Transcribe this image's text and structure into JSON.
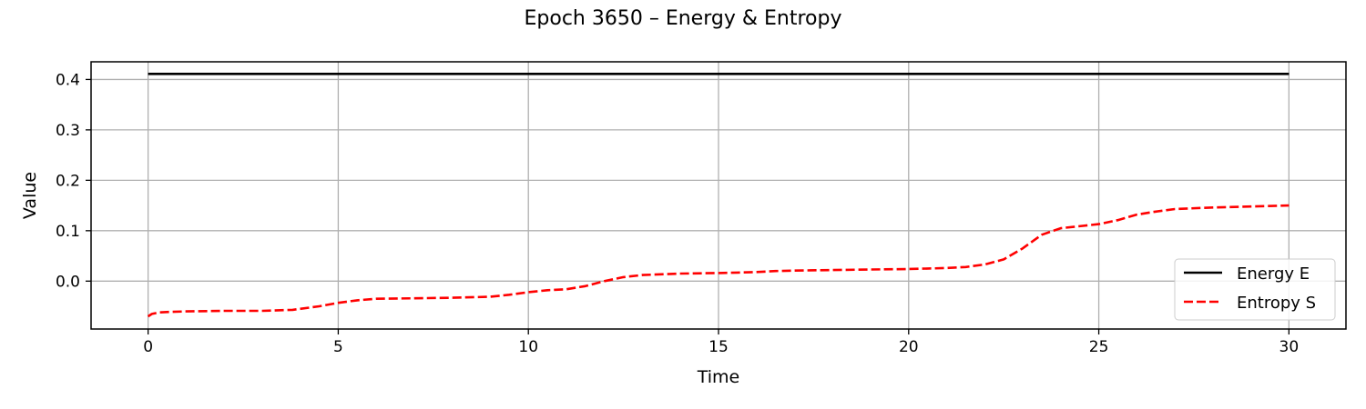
{
  "chart_data": {
    "type": "line",
    "title": "Epoch 3650 – Energy & Entropy",
    "xlabel": "Time",
    "ylabel": "Value",
    "xlim": [
      -1.5,
      31.5
    ],
    "ylim": [
      -0.095,
      0.435
    ],
    "xticks": [
      0,
      5,
      10,
      15,
      20,
      25,
      30
    ],
    "xtick_labels": [
      "0",
      "5",
      "10",
      "15",
      "20",
      "25",
      "30"
    ],
    "yticks": [
      0.0,
      0.1,
      0.2,
      0.3,
      0.4
    ],
    "ytick_labels": [
      "0.0",
      "0.1",
      "0.2",
      "0.3",
      "0.4"
    ],
    "grid": true,
    "legend_position": "lower-right",
    "series": [
      {
        "name": "Energy E",
        "color": "#000000",
        "style": "solid",
        "x": [
          0,
          30
        ],
        "y": [
          0.411,
          0.411
        ]
      },
      {
        "name": "Entropy S",
        "color": "#ff0000",
        "style": "dashed",
        "x": [
          0,
          0.1,
          0.3,
          0.6,
          1,
          2,
          3,
          3.8,
          4.5,
          5,
          5.5,
          6,
          7,
          8,
          9,
          9.5,
          10,
          10.5,
          11,
          11.5,
          12,
          12.5,
          13,
          14,
          15,
          15.5,
          16,
          16.5,
          17,
          18,
          19,
          20,
          21,
          21.5,
          22,
          22.5,
          23,
          23.5,
          24,
          25,
          25.5,
          26,
          26.5,
          27,
          28,
          29,
          30
        ],
        "y": [
          -0.07,
          -0.065,
          -0.062,
          -0.061,
          -0.06,
          -0.059,
          -0.059,
          -0.057,
          -0.05,
          -0.043,
          -0.038,
          -0.035,
          -0.034,
          -0.033,
          -0.031,
          -0.027,
          -0.022,
          -0.018,
          -0.016,
          -0.01,
          0.0,
          0.008,
          0.012,
          0.015,
          0.016,
          0.017,
          0.018,
          0.02,
          0.021,
          0.022,
          0.023,
          0.024,
          0.026,
          0.028,
          0.033,
          0.043,
          0.065,
          0.092,
          0.105,
          0.113,
          0.121,
          0.132,
          0.138,
          0.143,
          0.146,
          0.148,
          0.15
        ]
      }
    ]
  }
}
